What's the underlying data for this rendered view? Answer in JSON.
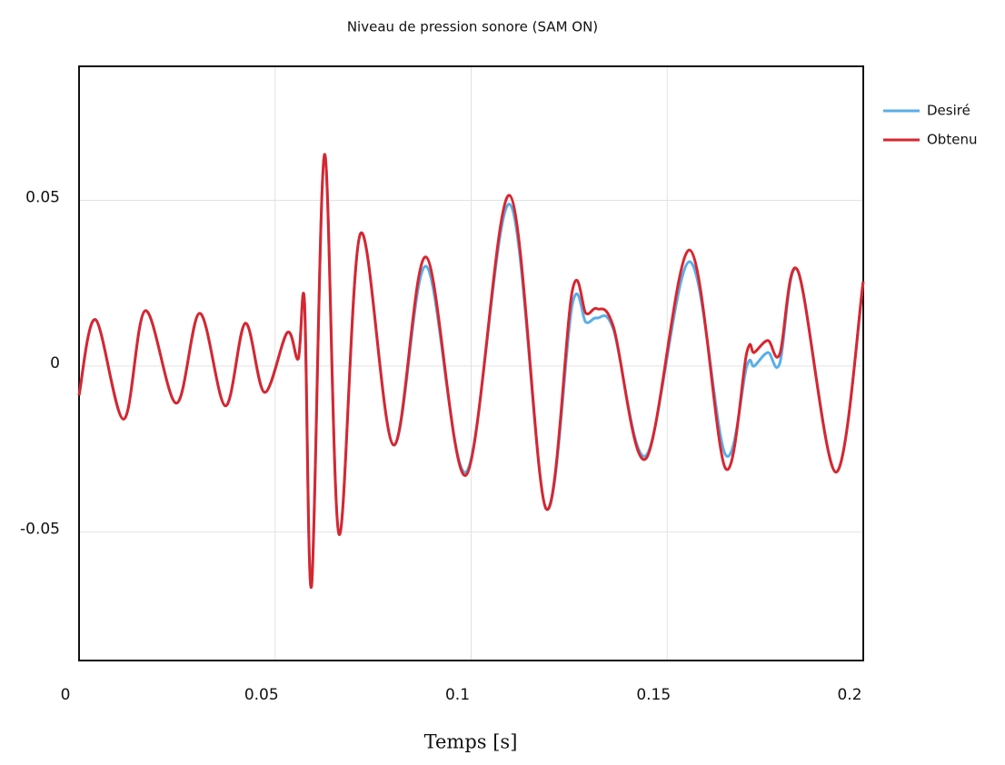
{
  "chart_data": {
    "type": "line",
    "title": "Niveau de pression sonore (SAM ON)",
    "x_label": "Temps [s]",
    "x": [
      0,
      0.0042,
      0.0114,
      0.0169,
      0.0248,
      0.0308,
      0.0373,
      0.0424,
      0.0473,
      0.0531,
      0.0559,
      0.0575,
      0.0593,
      0.0626,
      0.0663,
      0.0718,
      0.0802,
      0.0885,
      0.0987,
      0.1098,
      0.1191,
      0.1258,
      0.1293,
      0.1321,
      0.1363,
      0.1446,
      0.1557,
      0.1648,
      0.1703,
      0.1722,
      0.1757,
      0.1787,
      0.1833,
      0.193,
      0.2
    ],
    "series": [
      {
        "name": "Desiré",
        "color": "#5aaee8",
        "values": [
          -0.0088,
          0.014,
          -0.016,
          0.0167,
          -0.0112,
          0.0159,
          -0.012,
          0.0129,
          -0.0079,
          0.0101,
          0.0022,
          0.0192,
          -0.0663,
          0.0638,
          -0.0507,
          0.04,
          -0.0238,
          0.0301,
          -0.032,
          0.0488,
          -0.043,
          0.0186,
          0.0132,
          0.0145,
          0.011,
          -0.027,
          0.0315,
          -0.0266,
          0,
          0,
          0.0041,
          0.0008,
          0.0288,
          -0.032,
          0.0255
        ]
      },
      {
        "name": "Obtenu",
        "color": "#d8262f",
        "values": [
          -0.0088,
          0.014,
          -0.016,
          0.0167,
          -0.0112,
          0.0159,
          -0.012,
          0.0129,
          -0.0079,
          0.0101,
          0.0022,
          0.0192,
          -0.0663,
          0.0638,
          -0.0507,
          0.04,
          -0.0238,
          0.0329,
          -0.0329,
          0.0515,
          -0.043,
          0.0227,
          0.0159,
          0.0173,
          0.0118,
          -0.0279,
          0.035,
          -0.0307,
          0.0041,
          0.0041,
          0.0077,
          0.0036,
          0.0288,
          -0.032,
          0.0255
        ]
      }
    ],
    "xlim": [
      0,
      0.2
    ],
    "xticks": [
      0,
      0.05,
      0.1,
      0.15,
      0.2
    ],
    "ylim": [
      -0.0888,
      0.0904
    ],
    "yticks": [
      -0.05,
      0,
      0.05
    ],
    "grid": true,
    "legend": "outside-right"
  }
}
